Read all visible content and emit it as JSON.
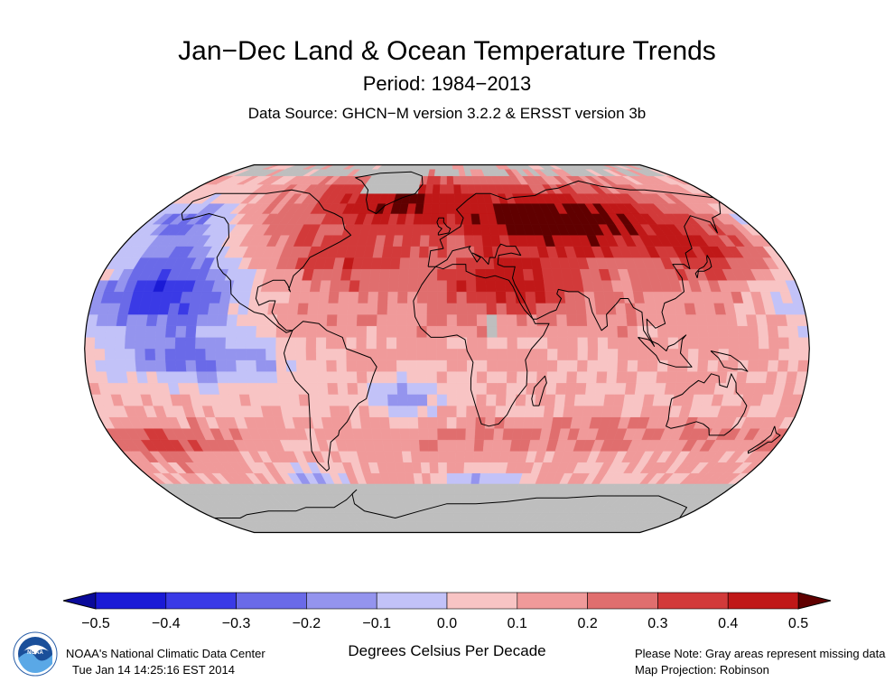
{
  "header": {
    "title": "Jan−Dec Land & Ocean Temperature Trends",
    "period": "Period: 1984−2013",
    "source": "Data Source: GHCN−M version 3.2.2 & ERSST version 3b"
  },
  "legend": {
    "ticks": [
      "−0.5",
      "−0.4",
      "−0.3",
      "−0.2",
      "−0.1",
      "0.0",
      "0.1",
      "0.2",
      "0.3",
      "0.4",
      "0.5"
    ],
    "colors": [
      "#1a1ad6",
      "#3a3ae6",
      "#6a6ae8",
      "#9494ee",
      "#c2c2f8",
      "#f8c4c4",
      "#f09a9a",
      "#e06e6e",
      "#d23a3a",
      "#c01818"
    ],
    "arrow_low_color": "#0a0a9a",
    "arrow_high_color": "#600000",
    "units": "Degrees Celsius Per Decade"
  },
  "footer": {
    "org": "NOAA's National Climatic Data Center",
    "timestamp": "Tue Jan 14 14:25:16 EST 2014",
    "note_missing": "Please Note: Gray areas represent missing data",
    "projection": "Map Projection: Robinson"
  },
  "logo": {
    "text": "NOAA",
    "icon": "noaa-logo-icon"
  },
  "map": {
    "missing_color": "#bebebe",
    "coastline_color": "#000000"
  }
}
